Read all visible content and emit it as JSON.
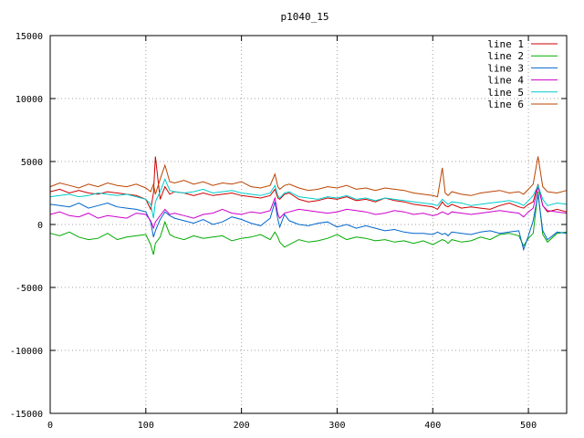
{
  "chart_data": {
    "type": "line",
    "title": "p1040_15",
    "xlabel": "",
    "ylabel": "",
    "xlim": [
      0,
      540
    ],
    "ylim": [
      -15000,
      15000
    ],
    "x_ticks": [
      0,
      100,
      200,
      300,
      400,
      500
    ],
    "y_ticks": [
      -15000,
      -10000,
      -5000,
      0,
      5000,
      10000,
      15000
    ],
    "grid": true,
    "legend_position": "top-right",
    "x": [
      0,
      10,
      20,
      30,
      40,
      50,
      60,
      70,
      80,
      90,
      100,
      105,
      108,
      110,
      115,
      120,
      125,
      130,
      140,
      150,
      160,
      170,
      180,
      190,
      200,
      210,
      220,
      230,
      235,
      238,
      240,
      245,
      250,
      260,
      270,
      280,
      290,
      300,
      310,
      320,
      330,
      340,
      350,
      360,
      370,
      380,
      390,
      400,
      405,
      410,
      413,
      416,
      420,
      430,
      440,
      450,
      460,
      470,
      480,
      490,
      495,
      500,
      505,
      510,
      515,
      520,
      530,
      540
    ],
    "series": [
      {
        "name": "line 1",
        "color": "#cc0000",
        "values": [
          2600,
          2800,
          2500,
          2700,
          2500,
          2400,
          2600,
          2500,
          2400,
          2300,
          2000,
          1200,
          2500,
          5400,
          2000,
          3000,
          2400,
          2600,
          2500,
          2300,
          2500,
          2300,
          2400,
          2500,
          2300,
          2200,
          2100,
          2300,
          2800,
          2100,
          2000,
          2400,
          2500,
          2000,
          1800,
          1900,
          2100,
          2000,
          2200,
          1900,
          2000,
          1800,
          2100,
          1900,
          1800,
          1600,
          1500,
          1400,
          1200,
          1800,
          1500,
          1400,
          1600,
          1300,
          1400,
          1300,
          1200,
          1500,
          1700,
          1400,
          1300,
          1600,
          1800,
          3200,
          1500,
          1000,
          1200,
          1000
        ]
      },
      {
        "name": "line 2",
        "color": "#00aa00",
        "values": [
          -700,
          -900,
          -600,
          -1000,
          -1200,
          -1100,
          -700,
          -1200,
          -1000,
          -900,
          -800,
          -1600,
          -2400,
          -1500,
          -1000,
          200,
          -800,
          -1000,
          -1200,
          -900,
          -1100,
          -1000,
          -900,
          -1300,
          -1100,
          -1000,
          -800,
          -1200,
          -600,
          -1000,
          -1400,
          -1800,
          -1600,
          -1200,
          -1400,
          -1300,
          -1100,
          -800,
          -1200,
          -1000,
          -1100,
          -1300,
          -1200,
          -1400,
          -1300,
          -1500,
          -1300,
          -1600,
          -1400,
          -1200,
          -1300,
          -1500,
          -1200,
          -1400,
          -1300,
          -1000,
          -1200,
          -800,
          -700,
          -900,
          -1700,
          -1100,
          -700,
          2600,
          -800,
          -1400,
          -700,
          -600
        ]
      },
      {
        "name": "line 3",
        "color": "#0066cc",
        "values": [
          1600,
          1500,
          1400,
          1700,
          1300,
          1500,
          1700,
          1400,
          1300,
          1200,
          1000,
          200,
          -1000,
          -500,
          400,
          1000,
          700,
          500,
          300,
          100,
          400,
          0,
          200,
          600,
          400,
          100,
          -100,
          500,
          1800,
          400,
          -200,
          800,
          300,
          0,
          -100,
          100,
          200,
          -200,
          0,
          -300,
          -100,
          -300,
          -500,
          -400,
          -600,
          -700,
          -700,
          -800,
          -600,
          -800,
          -700,
          -900,
          -600,
          -700,
          -800,
          -600,
          -500,
          -700,
          -600,
          -500,
          -2000,
          -900,
          300,
          2400,
          -500,
          -1200,
          -600,
          -700
        ]
      },
      {
        "name": "line 4",
        "color": "#cc00cc",
        "values": [
          800,
          1000,
          700,
          600,
          900,
          500,
          700,
          600,
          500,
          900,
          800,
          300,
          -300,
          200,
          700,
          1200,
          800,
          900,
          700,
          500,
          800,
          900,
          1200,
          900,
          800,
          1000,
          900,
          1100,
          2100,
          800,
          500,
          900,
          1000,
          1200,
          1100,
          1000,
          900,
          1000,
          1200,
          1100,
          1000,
          800,
          900,
          1100,
          1000,
          800,
          900,
          700,
          800,
          1000,
          900,
          800,
          1000,
          900,
          800,
          900,
          1000,
          1100,
          1000,
          900,
          600,
          1000,
          1300,
          3000,
          1500,
          1100,
          1000,
          900
        ]
      },
      {
        "name": "line 5",
        "color": "#00cccc",
        "values": [
          2200,
          2300,
          2400,
          2200,
          2300,
          2500,
          2400,
          2300,
          2400,
          2200,
          2000,
          1600,
          500,
          1800,
          2600,
          3600,
          2700,
          2600,
          2500,
          2600,
          2800,
          2500,
          2600,
          2700,
          2500,
          2400,
          2300,
          2500,
          3100,
          2300,
          2100,
          2500,
          2600,
          2200,
          2100,
          2000,
          2200,
          2100,
          2300,
          2000,
          2100,
          1900,
          2100,
          2000,
          1900,
          1800,
          1700,
          1600,
          1500,
          2000,
          1800,
          1600,
          1800,
          1700,
          1500,
          1600,
          1700,
          1800,
          1900,
          1700,
          1500,
          1900,
          2300,
          3100,
          2000,
          1500,
          1700,
          1600
        ]
      },
      {
        "name": "line 6",
        "color": "#bb4400",
        "values": [
          3000,
          3300,
          3100,
          2900,
          3200,
          3000,
          3300,
          3100,
          3000,
          3200,
          2900,
          2600,
          3200,
          2400,
          3600,
          4700,
          3400,
          3300,
          3500,
          3200,
          3400,
          3100,
          3300,
          3200,
          3400,
          3000,
          2900,
          3100,
          4000,
          3000,
          2800,
          3100,
          3200,
          2900,
          2700,
          2800,
          3000,
          2900,
          3100,
          2800,
          2900,
          2700,
          2900,
          2800,
          2700,
          2500,
          2400,
          2300,
          2200,
          4500,
          2500,
          2300,
          2600,
          2400,
          2300,
          2500,
          2600,
          2700,
          2500,
          2600,
          2400,
          2800,
          3200,
          5400,
          3000,
          2600,
          2500,
          2700
        ]
      }
    ]
  }
}
